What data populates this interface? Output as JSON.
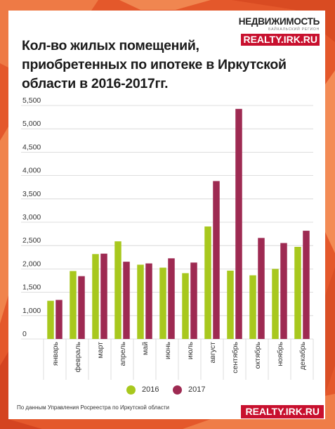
{
  "brand": {
    "name": "НЕДВИЖИМОСТЬ",
    "subtitle": "БАЙКАЛЬСКИЙ РЕГИОН",
    "url": "REALTY.IRK.RU"
  },
  "footer": {
    "source": "По данным Управления Росреестра по Иркутской области",
    "url": "REALTY.IRK.RU"
  },
  "colors": {
    "series_2016": "#a8c81e",
    "series_2017": "#9e2a52",
    "grid": "#d4d4d4",
    "background": "#e4582b",
    "brand_red": "#c8102e"
  },
  "chart_data": {
    "type": "bar",
    "title": "Кол-во жилых помещений, приобретенных по ипотеке в Иркутской области в 2016-2017гг.",
    "xlabel": "",
    "ylabel": "",
    "ylim": [
      0,
      5500
    ],
    "y_ticks": [
      "0",
      "1,000",
      "1,500",
      "2,000",
      "2,500",
      "3,000",
      "3,500",
      "4,000",
      "4,500",
      "5,000",
      "5,500"
    ],
    "categories": [
      "январь",
      "февраль",
      "март",
      "апрель",
      "май",
      "июнь",
      "июль",
      "август",
      "сентябрь",
      "октябрь",
      "ноябрь",
      "декабрь"
    ],
    "series": [
      {
        "name": "2016",
        "values": [
          900,
          1600,
          2000,
          2300,
          1750,
          1680,
          1550,
          2650,
          1610,
          1500,
          1650,
          2170
        ]
      },
      {
        "name": "2017",
        "values": [
          920,
          1480,
          2010,
          1820,
          1780,
          1900,
          1800,
          3720,
          5420,
          2380,
          2260,
          2550
        ]
      }
    ],
    "grid": true,
    "legend": "bottom"
  }
}
